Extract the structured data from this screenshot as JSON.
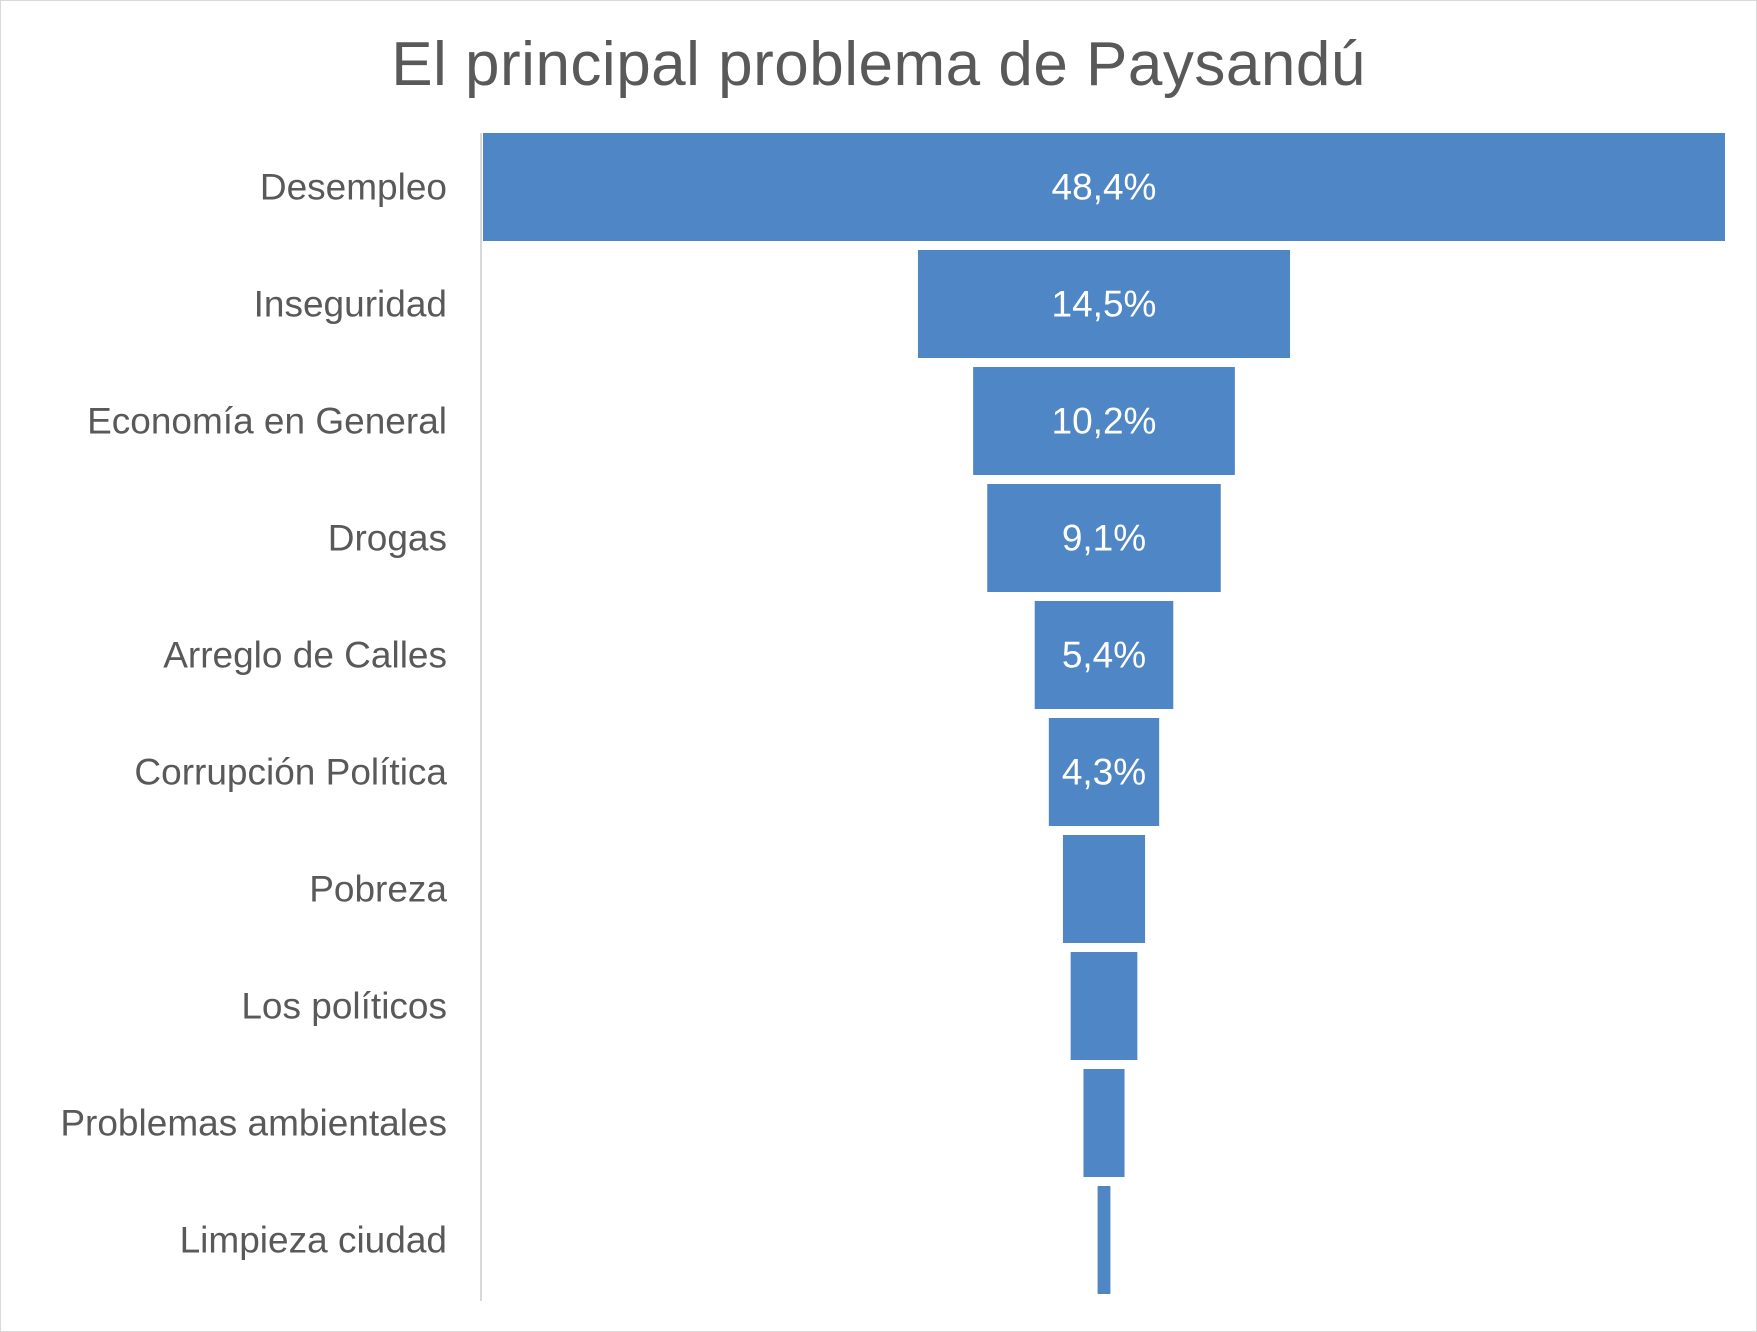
{
  "chart_data": {
    "type": "bar",
    "subtype": "funnel",
    "title": "El principal problema de Paysandú",
    "categories": [
      "Desempleo",
      "Inseguridad",
      "Economía en General",
      "Drogas",
      "Arreglo de Calles",
      "Corrupción Política",
      "Pobreza",
      "Los políticos",
      "Problemas ambientales",
      "Limpieza ciudad"
    ],
    "values": [
      48.4,
      14.5,
      10.2,
      9.1,
      5.4,
      4.3,
      3.2,
      2.6,
      1.6,
      0.5
    ],
    "data_labels": [
      "48,4%",
      "14,5%",
      "10,2%",
      "9,1%",
      "5,4%",
      "4,3%",
      "",
      "",
      "",
      ""
    ],
    "bar_color": "#4f86c6",
    "grid": false,
    "legend": "none"
  }
}
